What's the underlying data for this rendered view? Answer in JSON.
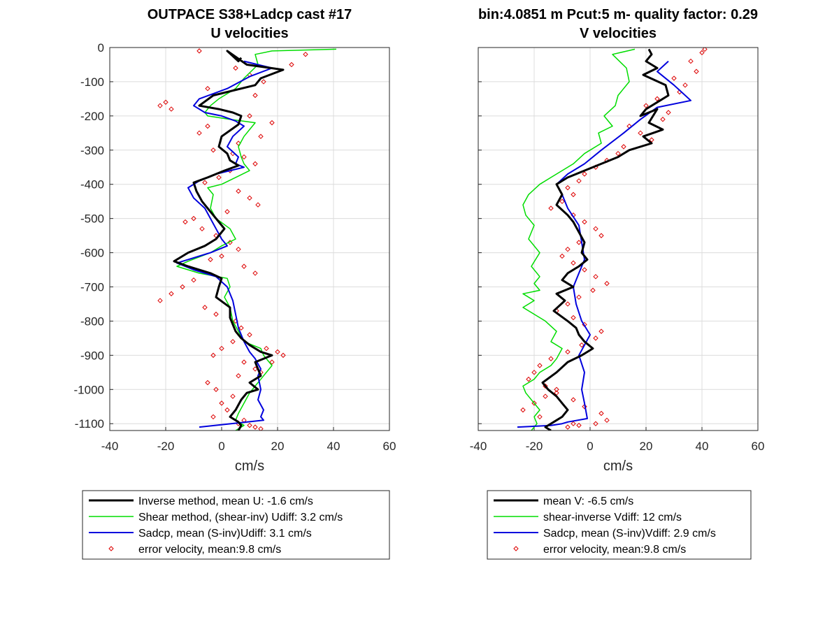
{
  "chart_data": [
    {
      "type": "line",
      "title": "OUTPACE S38+Ladcp cast #17",
      "subtitle": "U velocities",
      "xlabel": "cm/s",
      "ylabel": "",
      "xlim": [
        -40,
        60
      ],
      "ylim": [
        -1120,
        0
      ],
      "xticks": [
        "-40",
        "-20",
        "0",
        "20",
        "40",
        "60"
      ],
      "yticks": [
        "0",
        "-100",
        "-200",
        "-300",
        "-400",
        "-500",
        "-600",
        "-700",
        "-800",
        "-900",
        "-1000",
        "-1100"
      ],
      "grid": true,
      "legend_position": "below",
      "series": [
        {
          "name": "Inverse method, mean U:  -1.6 cm/s",
          "color": "#000000",
          "width": 3,
          "style": "line",
          "x": [
            7,
            6,
            2,
            9,
            22,
            14,
            12,
            -3,
            -8,
            -1,
            4,
            7,
            6,
            0,
            -1,
            2,
            3,
            6,
            1,
            -5,
            -10,
            -9,
            -7,
            -4,
            -1,
            1,
            -2,
            -6,
            -12,
            -17,
            -12,
            -4,
            0,
            -1,
            -2,
            3,
            3,
            4,
            5,
            7,
            10,
            14,
            18,
            12,
            14,
            10,
            13,
            9,
            7,
            5,
            3,
            6,
            7,
            6
          ],
          "y": [
            -30,
            -40,
            -10,
            -50,
            -65,
            -90,
            -110,
            -140,
            -170,
            -180,
            -190,
            -200,
            -225,
            -260,
            -290,
            -310,
            -330,
            -345,
            -360,
            -380,
            -395,
            -420,
            -450,
            -480,
            -510,
            -530,
            -560,
            -580,
            -600,
            -625,
            -640,
            -660,
            -675,
            -700,
            -730,
            -760,
            -790,
            -810,
            -830,
            -850,
            -870,
            -890,
            -900,
            -920,
            -960,
            -980,
            -1000,
            -1010,
            -1030,
            -1060,
            -1080,
            -1095,
            -1105,
            -1120
          ]
        },
        {
          "name": "Shear method, (shear-inv)  Udiff:  3.2 cm/s",
          "color": "#00dd00",
          "width": 1.5,
          "style": "line",
          "x": [
            41,
            18,
            12,
            13,
            8,
            5,
            -1,
            -4,
            -6,
            -5,
            3,
            12,
            10,
            8,
            6,
            7,
            8,
            10,
            5,
            0,
            -5,
            -3,
            -4,
            -2,
            3,
            5,
            0,
            -4,
            -12,
            -16,
            -8,
            2,
            3,
            1,
            3,
            4,
            6,
            8,
            14,
            15,
            18,
            15,
            12,
            10,
            8,
            6,
            5,
            8,
            5
          ],
          "y": [
            -5,
            -10,
            -20,
            -50,
            -90,
            -120,
            -150,
            -170,
            -190,
            -200,
            -210,
            -220,
            -240,
            -260,
            -290,
            -320,
            -340,
            -360,
            -380,
            -400,
            -410,
            -430,
            -470,
            -500,
            -530,
            -560,
            -580,
            -600,
            -625,
            -640,
            -660,
            -675,
            -700,
            -730,
            -760,
            -800,
            -830,
            -860,
            -880,
            -900,
            -930,
            -960,
            -990,
            -1010,
            -1040,
            -1070,
            -1090,
            -1105,
            -1120
          ]
        },
        {
          "name": "Sadcp, mean (S-inv)Udiff: 3.1 cm/s",
          "color": "#0000dd",
          "width": 2,
          "style": "line",
          "x": [
            8,
            18,
            10,
            2,
            -8,
            -10,
            -6,
            0,
            5,
            8,
            4,
            2,
            6,
            5,
            8,
            -2,
            -8,
            -12,
            -10,
            -6,
            -4,
            -2,
            0,
            2,
            -4,
            -8,
            -12,
            -16,
            -10,
            -2,
            2,
            4,
            5,
            6,
            8,
            10,
            12,
            14,
            13,
            14,
            13,
            15,
            14,
            15,
            -8
          ],
          "y": [
            -40,
            -60,
            -85,
            -120,
            -150,
            -170,
            -190,
            -200,
            -215,
            -230,
            -260,
            -290,
            -320,
            -340,
            -350,
            -370,
            -390,
            -410,
            -440,
            -470,
            -500,
            -530,
            -560,
            -580,
            -600,
            -610,
            -620,
            -630,
            -650,
            -670,
            -700,
            -740,
            -780,
            -820,
            -860,
            -890,
            -910,
            -940,
            -960,
            -1000,
            -1030,
            -1060,
            -1080,
            -1090,
            -1110
          ]
        },
        {
          "name": "error velocity, mean:9.8 cm/s",
          "color": "#dd0000",
          "style": "diamond",
          "x": [
            -8,
            30,
            25,
            5,
            10,
            15,
            -5,
            12,
            -20,
            -22,
            -18,
            10,
            -5,
            -8,
            18,
            14,
            6,
            -3,
            4,
            8,
            12,
            3,
            -1,
            -6,
            6,
            10,
            13,
            2,
            -10,
            -13,
            -7,
            -2,
            3,
            6,
            0,
            -4,
            8,
            12,
            -10,
            -14,
            -18,
            -22,
            -6,
            -2,
            5,
            7,
            10,
            4,
            0,
            -3,
            8,
            12,
            6,
            -5,
            -2,
            16,
            20,
            22,
            18,
            14,
            4,
            0,
            2,
            -3,
            8,
            6,
            10,
            12,
            14
          ],
          "y": [
            -10,
            -20,
            -50,
            -60,
            -80,
            -100,
            -120,
            -140,
            -160,
            -170,
            -180,
            -200,
            -230,
            -250,
            -220,
            -260,
            -280,
            -300,
            -310,
            -320,
            -340,
            -360,
            -380,
            -395,
            -420,
            -440,
            -460,
            -480,
            -500,
            -510,
            -530,
            -550,
            -570,
            -590,
            -610,
            -620,
            -640,
            -660,
            -680,
            -700,
            -720,
            -740,
            -760,
            -780,
            -800,
            -820,
            -840,
            -860,
            -880,
            -900,
            -920,
            -940,
            -960,
            -980,
            -1000,
            -880,
            -890,
            -900,
            -920,
            -950,
            -1020,
            -1040,
            -1060,
            -1080,
            -1090,
            -1100,
            -1105,
            -1110,
            -1115
          ]
        }
      ]
    },
    {
      "type": "line",
      "title": "bin:4.0851 m  Pcut:5 m- quality factor:  0.29",
      "subtitle": "V velocities",
      "xlabel": "cm/s",
      "ylabel": "",
      "xlim": [
        -40,
        60
      ],
      "ylim": [
        -1120,
        0
      ],
      "xticks": [
        "-40",
        "-20",
        "0",
        "20",
        "40",
        "60"
      ],
      "yticks": [
        "0",
        "-100",
        "-200",
        "-300",
        "-400",
        "-500",
        "-600",
        "-700",
        "-800",
        "-900",
        "-1000",
        "-1100"
      ],
      "grid": true,
      "legend_position": "below",
      "series": [
        {
          "name": "mean V:  -6.5 cm/s",
          "color": "#000000",
          "width": 3,
          "style": "line",
          "x": [
            21,
            22,
            20,
            24,
            19,
            27,
            28,
            24,
            20,
            18,
            24,
            21,
            26,
            19,
            22,
            14,
            10,
            4,
            -2,
            -8,
            -12,
            -10,
            -12,
            -8,
            -6,
            -4,
            -2,
            -3,
            -1,
            -4,
            -8,
            -10,
            -6,
            -12,
            -9,
            -13,
            -8,
            -5,
            -4,
            -2,
            1,
            -3,
            -8,
            -12,
            -17,
            -15,
            -12,
            -10,
            -8,
            -10,
            -12,
            -16,
            -14
          ],
          "y": [
            -5,
            -20,
            -40,
            -60,
            -80,
            -110,
            -140,
            -160,
            -180,
            -200,
            -180,
            -220,
            -240,
            -260,
            -280,
            -300,
            -320,
            -340,
            -360,
            -380,
            -400,
            -430,
            -460,
            -490,
            -510,
            -540,
            -570,
            -600,
            -620,
            -640,
            -660,
            -680,
            -700,
            -720,
            -740,
            -770,
            -800,
            -820,
            -840,
            -860,
            -880,
            -900,
            -920,
            -950,
            -980,
            -1000,
            -1020,
            -1040,
            -1060,
            -1080,
            -1090,
            -1110,
            -1120
          ]
        },
        {
          "name": "shear-inverse Vdiff:  12 cm/s",
          "color": "#00dd00",
          "width": 1.5,
          "style": "line",
          "x": [
            16,
            8,
            13,
            14,
            10,
            9,
            5,
            8,
            3,
            4,
            -2,
            -6,
            -10,
            -14,
            -18,
            -22,
            -24,
            -23,
            -20,
            -22,
            -18,
            -21,
            -18,
            -20,
            -18,
            -24,
            -20,
            -24,
            -20,
            -16,
            -12,
            -14,
            -10,
            -12,
            -14,
            -18,
            -20,
            -24,
            -23,
            -20,
            -18,
            -20,
            -19,
            -21
          ],
          "y": [
            -5,
            -20,
            -60,
            -100,
            -140,
            -170,
            -200,
            -230,
            -250,
            -280,
            -310,
            -340,
            -360,
            -380,
            -400,
            -430,
            -460,
            -490,
            -520,
            -560,
            -600,
            -640,
            -670,
            -690,
            -710,
            -720,
            -740,
            -760,
            -780,
            -800,
            -830,
            -860,
            -880,
            -910,
            -930,
            -950,
            -970,
            -990,
            -1010,
            -1040,
            -1060,
            -1080,
            -1100,
            -1120
          ]
        },
        {
          "name": "Sadcp, mean (S-inv)Vdiff: 2.9 cm/s",
          "color": "#0000dd",
          "width": 2,
          "style": "line",
          "x": [
            28,
            24,
            30,
            36,
            24,
            18,
            12,
            4,
            -2,
            -8,
            -12,
            -10,
            -8,
            -4,
            -3,
            -2,
            -4,
            -6,
            -5,
            -3,
            0,
            -2,
            -4,
            -2,
            -3,
            -2,
            -1,
            -8,
            -10,
            -14,
            -26
          ],
          "y": [
            -40,
            -70,
            -110,
            -155,
            -175,
            -210,
            -250,
            -300,
            -340,
            -370,
            -400,
            -430,
            -470,
            -520,
            -570,
            -620,
            -660,
            -700,
            -750,
            -800,
            -840,
            -870,
            -900,
            -950,
            -1000,
            -1040,
            -1085,
            -1095,
            -1100,
            -1105,
            -1110
          ]
        },
        {
          "name": "error velocity, mean:9.8 cm/s",
          "color": "#dd0000",
          "style": "diamond",
          "x": [
            41,
            40,
            36,
            38,
            30,
            34,
            32,
            24,
            20,
            28,
            26,
            14,
            18,
            22,
            12,
            10,
            6,
            2,
            -2,
            -4,
            -8,
            -6,
            -10,
            -14,
            -6,
            -2,
            2,
            4,
            -4,
            -8,
            -10,
            -6,
            -2,
            2,
            6,
            1,
            -4,
            -8,
            -12,
            -6,
            -2,
            4,
            2,
            -3,
            -8,
            -14,
            -18,
            -20,
            -22,
            -16,
            -12,
            -6,
            -2,
            4,
            6,
            2,
            -4,
            -8,
            -12,
            -16,
            -20,
            -24,
            -18,
            -6
          ],
          "y": [
            -5,
            -15,
            -40,
            -70,
            -90,
            -110,
            -130,
            -150,
            -170,
            -190,
            -210,
            -230,
            -250,
            -270,
            -290,
            -310,
            -330,
            -350,
            -370,
            -390,
            -410,
            -430,
            -450,
            -470,
            -490,
            -510,
            -530,
            -550,
            -570,
            -590,
            -610,
            -630,
            -650,
            -670,
            -690,
            -710,
            -730,
            -750,
            -770,
            -790,
            -810,
            -830,
            -850,
            -870,
            -890,
            -910,
            -930,
            -950,
            -970,
            -990,
            -1010,
            -1030,
            -1050,
            -1070,
            -1090,
            -1100,
            -1105,
            -1110,
            -1000,
            -1020,
            -1040,
            -1060,
            -1080,
            -1100
          ]
        }
      ]
    }
  ]
}
